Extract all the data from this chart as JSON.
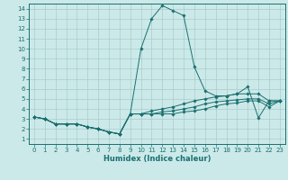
{
  "xlabel": "Humidex (Indice chaleur)",
  "background_color": "#cce9e9",
  "grid_color": "#aacccc",
  "line_color": "#1a7070",
  "xlim": [
    -0.5,
    23.5
  ],
  "ylim": [
    0.5,
    14.5
  ],
  "xticks": [
    0,
    1,
    2,
    3,
    4,
    5,
    6,
    7,
    8,
    9,
    10,
    11,
    12,
    13,
    14,
    15,
    16,
    17,
    18,
    19,
    20,
    21,
    22,
    23
  ],
  "yticks": [
    1,
    2,
    3,
    4,
    5,
    6,
    7,
    8,
    9,
    10,
    11,
    12,
    13,
    14
  ],
  "lines": [
    {
      "x": [
        0,
        1,
        2,
        3,
        4,
        5,
        6,
        7,
        8,
        9,
        10,
        11,
        12,
        13,
        14,
        15,
        16,
        17,
        18,
        19,
        20,
        21,
        22,
        23
      ],
      "y": [
        3.2,
        3.0,
        2.5,
        2.5,
        2.5,
        2.2,
        2.0,
        1.7,
        1.5,
        3.5,
        10.0,
        13.0,
        14.3,
        13.8,
        13.3,
        8.2,
        5.8,
        5.3,
        5.3,
        5.5,
        6.2,
        3.1,
        4.8,
        4.8
      ]
    },
    {
      "x": [
        0,
        1,
        2,
        3,
        4,
        5,
        6,
        7,
        8,
        9,
        10,
        11,
        12,
        13,
        14,
        15,
        16,
        17,
        18,
        19,
        20,
        21,
        22,
        23
      ],
      "y": [
        3.2,
        3.0,
        2.5,
        2.5,
        2.5,
        2.2,
        2.0,
        1.7,
        1.5,
        3.5,
        3.5,
        3.8,
        4.0,
        4.2,
        4.5,
        4.8,
        5.0,
        5.2,
        5.3,
        5.5,
        5.5,
        5.5,
        4.8,
        4.8
      ]
    },
    {
      "x": [
        0,
        1,
        2,
        3,
        4,
        5,
        6,
        7,
        8,
        9,
        10,
        11,
        12,
        13,
        14,
        15,
        16,
        17,
        18,
        19,
        20,
        21,
        22,
        23
      ],
      "y": [
        3.2,
        3.0,
        2.5,
        2.5,
        2.5,
        2.2,
        2.0,
        1.7,
        1.5,
        3.5,
        3.5,
        3.5,
        3.7,
        3.8,
        4.0,
        4.2,
        4.5,
        4.7,
        4.8,
        4.9,
        5.0,
        5.0,
        4.5,
        4.8
      ]
    },
    {
      "x": [
        0,
        1,
        2,
        3,
        4,
        5,
        6,
        7,
        8,
        9,
        10,
        11,
        12,
        13,
        14,
        15,
        16,
        17,
        18,
        19,
        20,
        21,
        22,
        23
      ],
      "y": [
        3.2,
        3.0,
        2.5,
        2.5,
        2.5,
        2.2,
        2.0,
        1.7,
        1.5,
        3.5,
        3.5,
        3.5,
        3.5,
        3.5,
        3.7,
        3.8,
        4.0,
        4.3,
        4.5,
        4.6,
        4.8,
        4.8,
        4.2,
        4.8
      ]
    }
  ]
}
